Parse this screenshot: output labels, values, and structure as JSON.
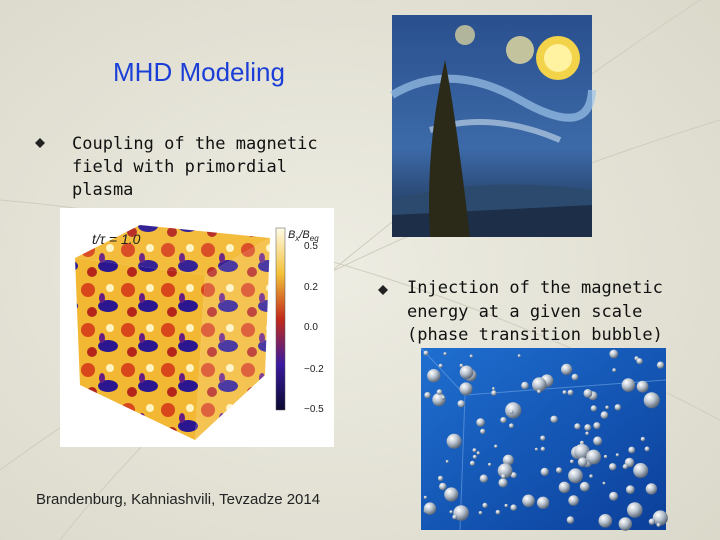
{
  "title": "MHD Modeling",
  "bullets": [
    {
      "lines": [
        "Coupling of the magnetic",
        "field with primordial",
        "plasma"
      ]
    },
    {
      "lines": [
        "Injection of the magnetic",
        "energy at a given scale",
        "(phase transition bubble)"
      ]
    }
  ],
  "figure": {
    "time_label": "t/τ = 1.0",
    "colorbar_label": [
      "B",
      "x",
      "/B",
      "eq"
    ],
    "colorbar_ticks": [
      "0.5",
      "0.2",
      "0.0",
      "−0.2",
      "−0.5"
    ]
  },
  "citation": "Brandenburg, Kahniashvili, Tevzadze 2014"
}
